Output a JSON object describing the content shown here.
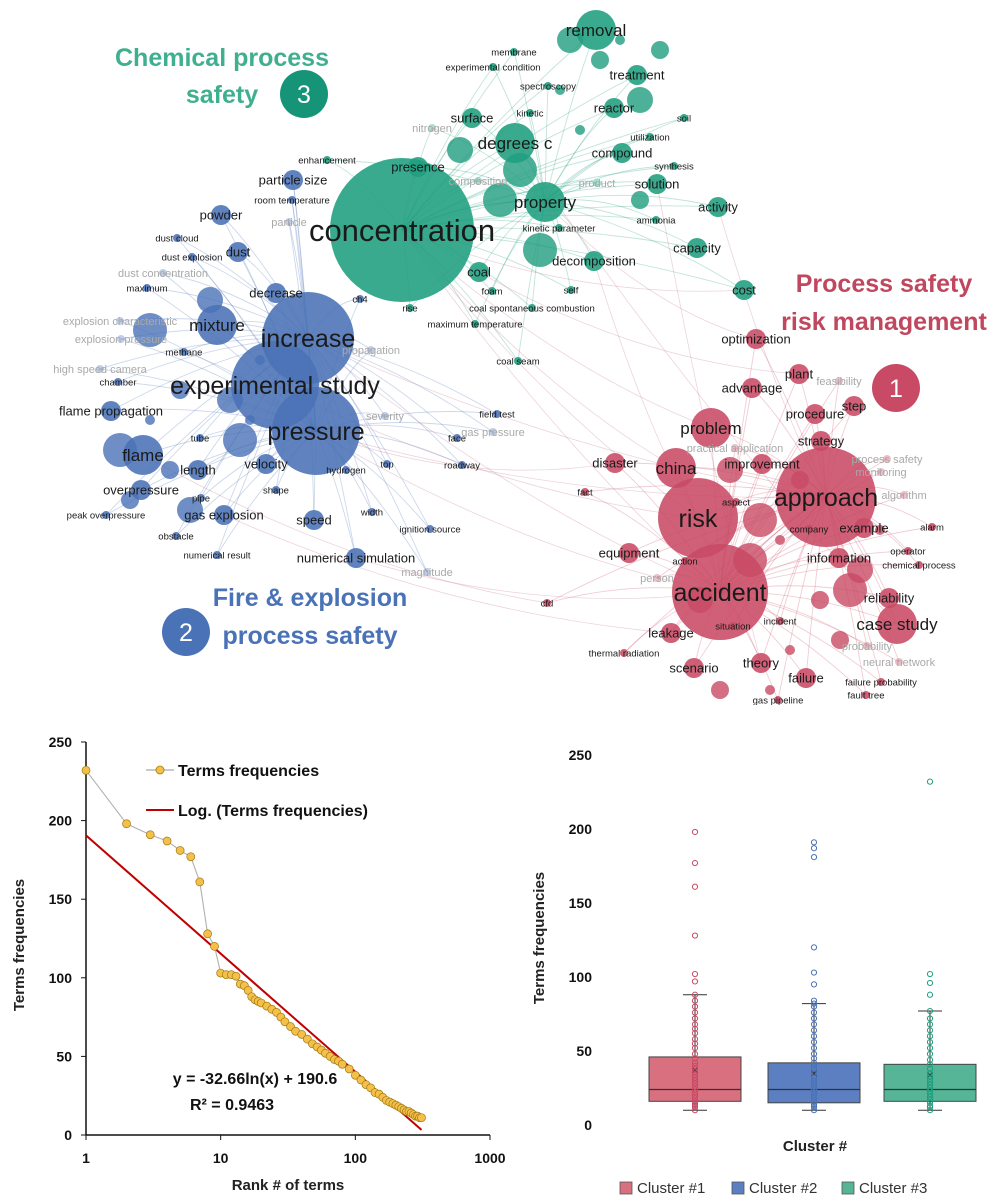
{
  "colors": {
    "cluster1": "#c84a64",
    "cluster2": "#4a72b6",
    "cluster3": "#1f9e7e",
    "c1_box": "#d9707f",
    "c2_box": "#5b7fc0",
    "c3_box": "#55b596",
    "trend": "#c00000",
    "points": "#f5c04a"
  },
  "network": {
    "cluster_titles": {
      "c1": [
        "Process safety",
        "risk management"
      ],
      "c2": [
        "Fire & explosion",
        "process safety"
      ],
      "c3": [
        "Chemical process",
        "safety"
      ]
    },
    "cluster_numbers": {
      "c1": "1",
      "c2": "2",
      "c3": "3"
    },
    "terms": [
      {
        "t": "concentration",
        "c": 3,
        "s": "xl"
      },
      {
        "t": "degrees c",
        "c": 3,
        "s": "m"
      },
      {
        "t": "property",
        "c": 3,
        "s": "m"
      },
      {
        "t": "removal",
        "c": 3,
        "s": "m"
      },
      {
        "t": "treatment",
        "c": 3,
        "s": "s"
      },
      {
        "t": "reactor",
        "c": 3,
        "s": "s"
      },
      {
        "t": "surface",
        "c": 3,
        "s": "s"
      },
      {
        "t": "presence",
        "c": 3,
        "s": "s"
      },
      {
        "t": "compound",
        "c": 3,
        "s": "s"
      },
      {
        "t": "solution",
        "c": 3,
        "s": "s"
      },
      {
        "t": "activity",
        "c": 3,
        "s": "s"
      },
      {
        "t": "capacity",
        "c": 3,
        "s": "s"
      },
      {
        "t": "decomposition",
        "c": 3,
        "s": "s"
      },
      {
        "t": "coal",
        "c": 3,
        "s": "s"
      },
      {
        "t": "cost",
        "c": 3,
        "s": "s"
      },
      {
        "t": "kinetic",
        "c": 3,
        "s": "xs"
      },
      {
        "t": "spectroscopy",
        "c": 3,
        "s": "xs"
      },
      {
        "t": "membrane",
        "c": 3,
        "s": "xs"
      },
      {
        "t": "experimental condition",
        "c": 3,
        "s": "xs"
      },
      {
        "t": "soil",
        "c": 3,
        "s": "xs"
      },
      {
        "t": "utilization",
        "c": 3,
        "s": "xs"
      },
      {
        "t": "synthesis",
        "c": 3,
        "s": "xs"
      },
      {
        "t": "ammonia",
        "c": 3,
        "s": "xs"
      },
      {
        "t": "kinetic parameter",
        "c": 3,
        "s": "xs"
      },
      {
        "t": "self",
        "c": 3,
        "s": "xs"
      },
      {
        "t": "foam",
        "c": 3,
        "s": "xs"
      },
      {
        "t": "coal spontaneous combustion",
        "c": 3,
        "s": "xs"
      },
      {
        "t": "maximum temperature",
        "c": 3,
        "s": "xs"
      },
      {
        "t": "rise",
        "c": 3,
        "s": "xs"
      },
      {
        "t": "coal seam",
        "c": 3,
        "s": "xs"
      },
      {
        "t": "enhancement",
        "c": 3,
        "s": "xs"
      },
      {
        "t": "nitrogen",
        "c": 3,
        "s": "fade"
      },
      {
        "t": "composition",
        "c": 3,
        "s": "fade"
      },
      {
        "t": "product",
        "c": 3,
        "s": "fade"
      },
      {
        "t": "increase",
        "c": 2,
        "s": "l"
      },
      {
        "t": "experimental study",
        "c": 2,
        "s": "l"
      },
      {
        "t": "pressure",
        "c": 2,
        "s": "l"
      },
      {
        "t": "mixture",
        "c": 2,
        "s": "m"
      },
      {
        "t": "decrease",
        "c": 2,
        "s": "s"
      },
      {
        "t": "flame",
        "c": 2,
        "s": "m"
      },
      {
        "t": "velocity",
        "c": 2,
        "s": "s"
      },
      {
        "t": "length",
        "c": 2,
        "s": "s"
      },
      {
        "t": "gas explosion",
        "c": 2,
        "s": "s"
      },
      {
        "t": "overpressure",
        "c": 2,
        "s": "s"
      },
      {
        "t": "flame propagation",
        "c": 2,
        "s": "s"
      },
      {
        "t": "dust",
        "c": 2,
        "s": "s"
      },
      {
        "t": "powder",
        "c": 2,
        "s": "s"
      },
      {
        "t": "speed",
        "c": 2,
        "s": "s"
      },
      {
        "t": "numerical simulation",
        "c": 2,
        "s": "s"
      },
      {
        "t": "particle size",
        "c": 2,
        "s": "s"
      },
      {
        "t": "tube",
        "c": 2,
        "s": "xs"
      },
      {
        "t": "pipe",
        "c": 2,
        "s": "xs"
      },
      {
        "t": "shape",
        "c": 2,
        "s": "xs"
      },
      {
        "t": "obstacle",
        "c": 2,
        "s": "xs"
      },
      {
        "t": "methane",
        "c": 2,
        "s": "xs"
      },
      {
        "t": "chamber",
        "c": 2,
        "s": "xs"
      },
      {
        "t": "maximum",
        "c": 2,
        "s": "xs"
      },
      {
        "t": "dust cloud",
        "c": 2,
        "s": "xs"
      },
      {
        "t": "dust explosion",
        "c": 2,
        "s": "xs"
      },
      {
        "t": "dust concentration",
        "c": 2,
        "s": "fade"
      },
      {
        "t": "explosion pressure",
        "c": 2,
        "s": "fade"
      },
      {
        "t": "explosion characteristic",
        "c": 2,
        "s": "fade"
      },
      {
        "t": "high speed camera",
        "c": 2,
        "s": "fade"
      },
      {
        "t": "peak overpressure",
        "c": 2,
        "s": "xs"
      },
      {
        "t": "numerical result",
        "c": 2,
        "s": "xs"
      },
      {
        "t": "room temperature",
        "c": 2,
        "s": "xs"
      },
      {
        "t": "hydrogen",
        "c": 2,
        "s": "xs"
      },
      {
        "t": "top",
        "c": 2,
        "s": "xs"
      },
      {
        "t": "width",
        "c": 2,
        "s": "xs"
      },
      {
        "t": "ignition source",
        "c": 2,
        "s": "xs"
      },
      {
        "t": "field test",
        "c": 2,
        "s": "xs"
      },
      {
        "t": "face",
        "c": 2,
        "s": "xs"
      },
      {
        "t": "roadway",
        "c": 2,
        "s": "xs"
      },
      {
        "t": "ch4",
        "c": 2,
        "s": "xs"
      },
      {
        "t": "severity",
        "c": 2,
        "s": "fade"
      },
      {
        "t": "gas pressure",
        "c": 2,
        "s": "fade"
      },
      {
        "t": "propagation",
        "c": 2,
        "s": "fade"
      },
      {
        "t": "particle",
        "c": 2,
        "s": "fade"
      },
      {
        "t": "magnitude",
        "c": 2,
        "s": "fade"
      },
      {
        "t": "accident",
        "c": 1,
        "s": "l"
      },
      {
        "t": "approach",
        "c": 1,
        "s": "l"
      },
      {
        "t": "risk",
        "c": 1,
        "s": "l"
      },
      {
        "t": "china",
        "c": 1,
        "s": "m"
      },
      {
        "t": "problem",
        "c": 1,
        "s": "m"
      },
      {
        "t": "case study",
        "c": 1,
        "s": "m"
      },
      {
        "t": "theory",
        "c": 1,
        "s": "s"
      },
      {
        "t": "scenario",
        "c": 1,
        "s": "s"
      },
      {
        "t": "leakage",
        "c": 1,
        "s": "s"
      },
      {
        "t": "information",
        "c": 1,
        "s": "s"
      },
      {
        "t": "example",
        "c": 1,
        "s": "s"
      },
      {
        "t": "strategy",
        "c": 1,
        "s": "s"
      },
      {
        "t": "plant",
        "c": 1,
        "s": "s"
      },
      {
        "t": "procedure",
        "c": 1,
        "s": "s"
      },
      {
        "t": "step",
        "c": 1,
        "s": "s"
      },
      {
        "t": "optimization",
        "c": 1,
        "s": "s"
      },
      {
        "t": "advantage",
        "c": 1,
        "s": "s"
      },
      {
        "t": "improvement",
        "c": 1,
        "s": "s"
      },
      {
        "t": "disaster",
        "c": 1,
        "s": "s"
      },
      {
        "t": "equipment",
        "c": 1,
        "s": "s"
      },
      {
        "t": "reliability",
        "c": 1,
        "s": "s"
      },
      {
        "t": "failure",
        "c": 1,
        "s": "s"
      },
      {
        "t": "situation",
        "c": 1,
        "s": "xs"
      },
      {
        "t": "incident",
        "c": 1,
        "s": "xs"
      },
      {
        "t": "company",
        "c": 1,
        "s": "xs"
      },
      {
        "t": "action",
        "c": 1,
        "s": "xs"
      },
      {
        "t": "aspect",
        "c": 1,
        "s": "xs"
      },
      {
        "t": "fact",
        "c": 1,
        "s": "xs"
      },
      {
        "t": "cfd",
        "c": 1,
        "s": "xs"
      },
      {
        "t": "alarm",
        "c": 1,
        "s": "xs"
      },
      {
        "t": "operator",
        "c": 1,
        "s": "xs"
      },
      {
        "t": "chemical process",
        "c": 1,
        "s": "xs"
      },
      {
        "t": "thermal radiation",
        "c": 1,
        "s": "xs"
      },
      {
        "t": "failure probability",
        "c": 1,
        "s": "xs"
      },
      {
        "t": "fault tree",
        "c": 1,
        "s": "xs"
      },
      {
        "t": "gas pipeline",
        "c": 1,
        "s": "xs"
      },
      {
        "t": "process safety",
        "c": 1,
        "s": "fade"
      },
      {
        "t": "monitoring",
        "c": 1,
        "s": "fade"
      },
      {
        "t": "algorithm",
        "c": 1,
        "s": "fade"
      },
      {
        "t": "practical application",
        "c": 1,
        "s": "fade"
      },
      {
        "t": "probability",
        "c": 1,
        "s": "fade"
      },
      {
        "t": "neural network",
        "c": 1,
        "s": "fade"
      },
      {
        "t": "person",
        "c": 1,
        "s": "fade"
      },
      {
        "t": "feasibility",
        "c": 1,
        "s": "fade"
      }
    ]
  },
  "chart_data": [
    {
      "type": "scatter",
      "xscale": "log",
      "xlim": [
        1,
        1000
      ],
      "ylim": [
        0,
        250
      ],
      "xticks": [
        1,
        10,
        100,
        1000
      ],
      "yticks": [
        0,
        50,
        100,
        150,
        200,
        250
      ],
      "xlabel": "Rank # of terms",
      "ylabel": "Terms frequencies",
      "legend": [
        "Terms frequencies",
        "Log. (Terms frequencies)"
      ],
      "equation": "y = -32.66ln(x) + 190.6",
      "r2": "R² = 0.9463",
      "trendline": {
        "slope": -32.66,
        "intercept": 190.6
      },
      "series": [
        {
          "name": "Terms frequencies",
          "x": [
            1,
            2,
            3,
            4,
            5,
            6,
            7,
            8,
            9,
            10,
            11,
            12,
            13,
            14,
            15,
            16,
            17,
            18,
            19,
            20,
            22,
            24,
            26,
            28,
            30,
            33,
            36,
            40,
            44,
            48,
            52,
            56,
            60,
            65,
            70,
            75,
            80,
            90,
            100,
            110,
            120,
            130,
            140,
            150,
            160,
            170,
            180,
            190,
            200,
            210,
            220,
            230,
            240,
            250,
            260,
            270,
            280,
            290,
            300,
            310
          ],
          "y": [
            232,
            198,
            191,
            187,
            181,
            177,
            161,
            128,
            120,
            103,
            102,
            102,
            101,
            96,
            95,
            92,
            88,
            86,
            85,
            84,
            82,
            80,
            78,
            75,
            72,
            69,
            66,
            64,
            61,
            58,
            56,
            54,
            52,
            50,
            48,
            47,
            45,
            42,
            38,
            35,
            32,
            30,
            27,
            26,
            24,
            22,
            21,
            20,
            19,
            18,
            17,
            16,
            15,
            15,
            14,
            13,
            12,
            12,
            11,
            11
          ]
        }
      ]
    },
    {
      "type": "box",
      "ylim": [
        0,
        250
      ],
      "yticks": [
        0,
        50,
        100,
        150,
        200,
        250
      ],
      "xlabel": "Cluster #",
      "ylabel": "Terms frequencies",
      "categories": [
        "Cluster #1",
        "Cluster #2",
        "Cluster #3"
      ],
      "boxes": [
        {
          "name": "Cluster #1",
          "min": 10,
          "q1": 16,
          "median": 24,
          "q3": 46,
          "max": 88,
          "mean": 37,
          "outliers": [
            198,
            177,
            161,
            128,
            102,
            97
          ],
          "points": [
            10,
            12,
            13,
            14,
            15,
            16,
            18,
            20,
            22,
            24,
            26,
            28,
            30,
            32,
            34,
            36,
            38,
            40,
            42,
            45,
            48,
            52,
            55,
            58,
            62,
            65,
            68,
            72,
            76,
            80,
            84,
            88
          ]
        },
        {
          "name": "Cluster #2",
          "min": 10,
          "q1": 15,
          "median": 24,
          "q3": 42,
          "max": 82,
          "mean": 35,
          "outliers": [
            191,
            187,
            181,
            120,
            103,
            95,
            84
          ],
          "points": [
            10,
            12,
            13,
            14,
            16,
            18,
            20,
            22,
            24,
            26,
            28,
            30,
            32,
            35,
            38,
            40,
            42,
            45,
            48,
            52,
            56,
            60,
            64,
            68,
            72,
            76,
            80,
            82
          ]
        },
        {
          "name": "Cluster #3",
          "min": 10,
          "q1": 16,
          "median": 24,
          "q3": 41,
          "max": 77,
          "mean": 34,
          "outliers": [
            232,
            102,
            96,
            88
          ],
          "points": [
            10,
            12,
            13,
            15,
            17,
            19,
            21,
            23,
            25,
            27,
            29,
            31,
            33,
            35,
            38,
            41,
            44,
            48,
            52,
            56,
            60,
            64,
            68,
            72,
            77
          ]
        }
      ]
    }
  ]
}
